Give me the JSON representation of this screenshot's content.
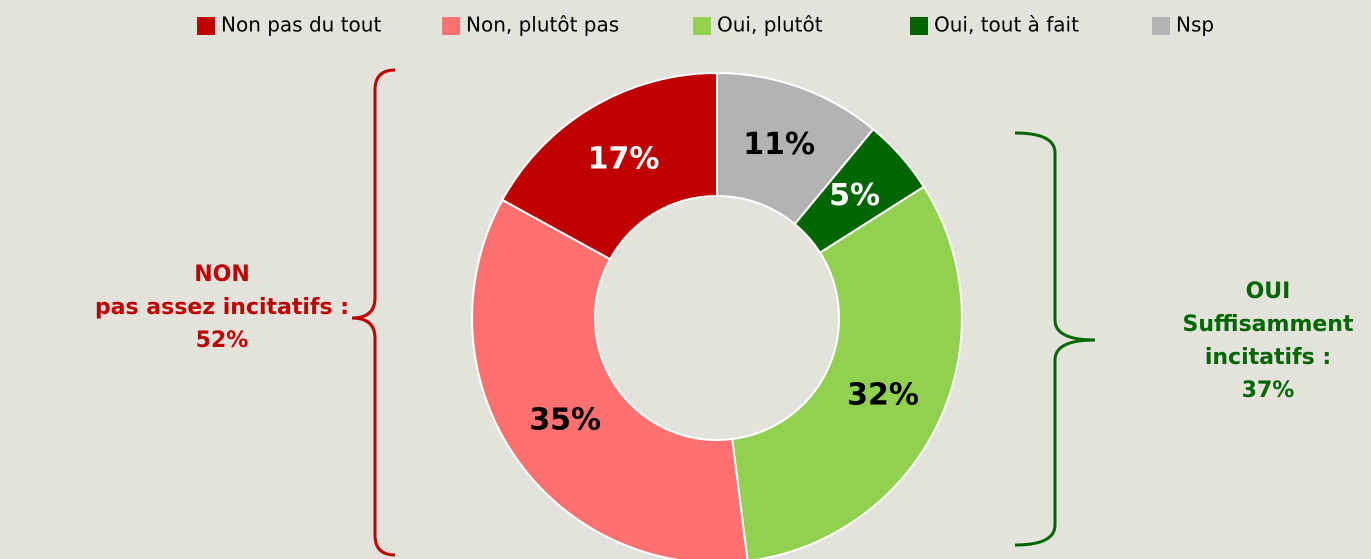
{
  "chart_data": {
    "type": "pie",
    "donut": true,
    "direction": "counterclockwise",
    "categories": [
      "Non pas du tout",
      "Non, plutôt pas",
      "Oui, plutôt",
      "Oui, tout à fait",
      "Nsp"
    ],
    "values": [
      17,
      35,
      32,
      5,
      11
    ],
    "value_labels": [
      "17%",
      "35%",
      "32%",
      "5%",
      "11%"
    ],
    "colors": [
      "#c00000",
      "#ff7070",
      "#92d050",
      "#006600",
      "#b3b3b3"
    ],
    "label_colors": [
      "#ffffff",
      "#000000",
      "#000000",
      "#ffffff",
      "#000000"
    ],
    "annotations": [
      {
        "lines": [
          "NON",
          "pas assez incitatifs :",
          "52%"
        ],
        "color": "#c00000"
      },
      {
        "lines": [
          "OUI",
          "Suffisamment",
          "incitatifs :",
          "37%"
        ],
        "color": "#006600"
      }
    ]
  }
}
